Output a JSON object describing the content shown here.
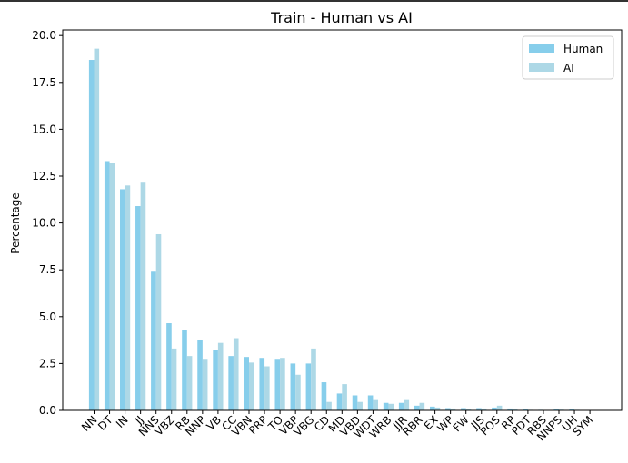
{
  "chart_data": {
    "type": "bar",
    "title": "Train - Human vs AI",
    "xlabel": "",
    "ylabel": "Percentage",
    "ylim": [
      0,
      20.3
    ],
    "yticks": [
      "0.0",
      "2.5",
      "5.0",
      "7.5",
      "10.0",
      "12.5",
      "15.0",
      "17.5",
      "20.0"
    ],
    "grid": false,
    "legend_position": "top-right",
    "categories": [
      "NN",
      "DT",
      "IN",
      "JJ",
      "NNS",
      "VBZ",
      "RB",
      "NNP",
      "VB",
      "CC",
      "VBN",
      "PRP",
      "TO",
      "VBP",
      "VBG",
      "CD",
      "MD",
      "VBD",
      "WDT",
      "WRB",
      "JJR",
      "RBR",
      "EX",
      "WP",
      "FW",
      "JJS",
      "POS",
      "RP",
      "PDT",
      "RBS",
      "NNPS",
      "UH",
      "SYM"
    ],
    "series": [
      {
        "name": "Human",
        "color": "#87CEEB",
        "values": [
          18.7,
          13.3,
          11.8,
          10.9,
          7.4,
          4.65,
          4.3,
          3.75,
          3.2,
          2.9,
          2.85,
          2.8,
          2.75,
          2.5,
          2.5,
          1.5,
          0.9,
          0.8,
          0.8,
          0.4,
          0.4,
          0.25,
          0.2,
          0.12,
          0.12,
          0.12,
          0.15,
          0.1,
          0.05,
          0.03,
          0.05,
          0.05,
          0.02
        ]
      },
      {
        "name": "AI",
        "color": "#ADD8E6",
        "values": [
          19.3,
          13.2,
          12.0,
          12.15,
          9.4,
          3.3,
          2.9,
          2.75,
          3.6,
          3.85,
          2.55,
          2.35,
          2.8,
          1.9,
          3.3,
          0.45,
          1.4,
          0.45,
          0.55,
          0.35,
          0.55,
          0.4,
          0.15,
          0.1,
          0.08,
          0.1,
          0.25,
          0.06,
          0.03,
          0.02,
          0.04,
          0.03,
          0.01
        ]
      }
    ]
  }
}
